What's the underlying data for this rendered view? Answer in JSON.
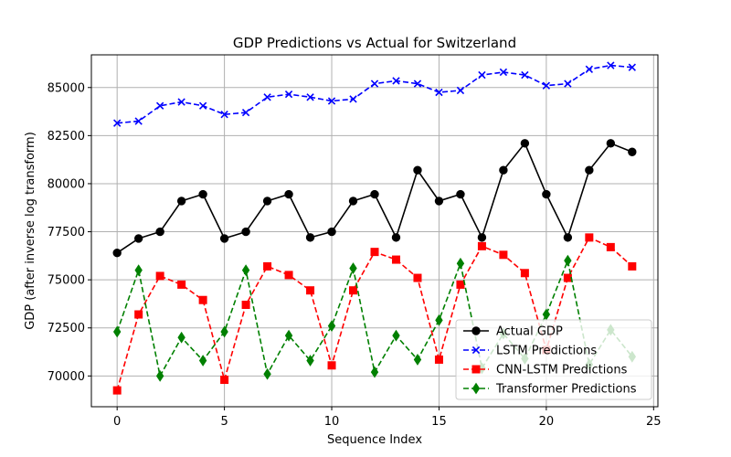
{
  "chart_data": {
    "type": "line",
    "title": "GDP Predictions vs Actual for Switzerland",
    "xlabel": "Sequence Index",
    "ylabel": "GDP (after inverse log transform)",
    "xlim": [
      -1.2,
      25.2
    ],
    "ylim": [
      68400,
      86700
    ],
    "xticks": [
      0,
      5,
      10,
      15,
      20,
      25
    ],
    "yticks": [
      70000,
      72500,
      75000,
      77500,
      80000,
      82500,
      85000
    ],
    "grid": true,
    "legend_position": "lower-right",
    "x": [
      0,
      1,
      2,
      3,
      4,
      5,
      6,
      7,
      8,
      9,
      10,
      11,
      12,
      13,
      14,
      15,
      16,
      17,
      18,
      19,
      20,
      21,
      22,
      23,
      24
    ],
    "series": [
      {
        "name": "Actual GDP",
        "color": "#000000",
        "line_style": "solid",
        "marker": "circle",
        "values": [
          76400,
          77150,
          77500,
          79100,
          79450,
          77150,
          77500,
          79100,
          79450,
          77200,
          77500,
          79100,
          79450,
          77200,
          80700,
          79100,
          79450,
          77200,
          80700,
          82100,
          79450,
          77200,
          80700,
          82100,
          81650
        ]
      },
      {
        "name": "LSTM Predictions",
        "color": "#0000ff",
        "line_style": "dashed",
        "marker": "x",
        "values": [
          83150,
          83250,
          84050,
          84250,
          84050,
          83600,
          83700,
          84500,
          84650,
          84500,
          84300,
          84400,
          85200,
          85350,
          85200,
          84750,
          84850,
          85650,
          85800,
          85650,
          85100,
          85200,
          85950,
          86150,
          86050
        ]
      },
      {
        "name": "CNN-LSTM Predictions",
        "color": "#ff0000",
        "line_style": "dashed",
        "marker": "square",
        "values": [
          69250,
          73200,
          75200,
          74750,
          73950,
          69800,
          73700,
          75700,
          75250,
          74450,
          70550,
          74450,
          76450,
          76050,
          75100,
          70850,
          74750,
          76750,
          76300,
          75350,
          71350,
          75100,
          77200,
          76700,
          75700
        ]
      },
      {
        "name": "Transformer Predictions",
        "color": "#008000",
        "line_style": "dashed",
        "marker": "diamond",
        "values": [
          72300,
          75500,
          70000,
          72000,
          70800,
          72300,
          75500,
          70100,
          72100,
          70800,
          72600,
          75600,
          70200,
          72100,
          70850,
          72900,
          75850,
          70400,
          72200,
          70900,
          73200,
          76000,
          70600,
          72400,
          71000
        ]
      }
    ]
  }
}
